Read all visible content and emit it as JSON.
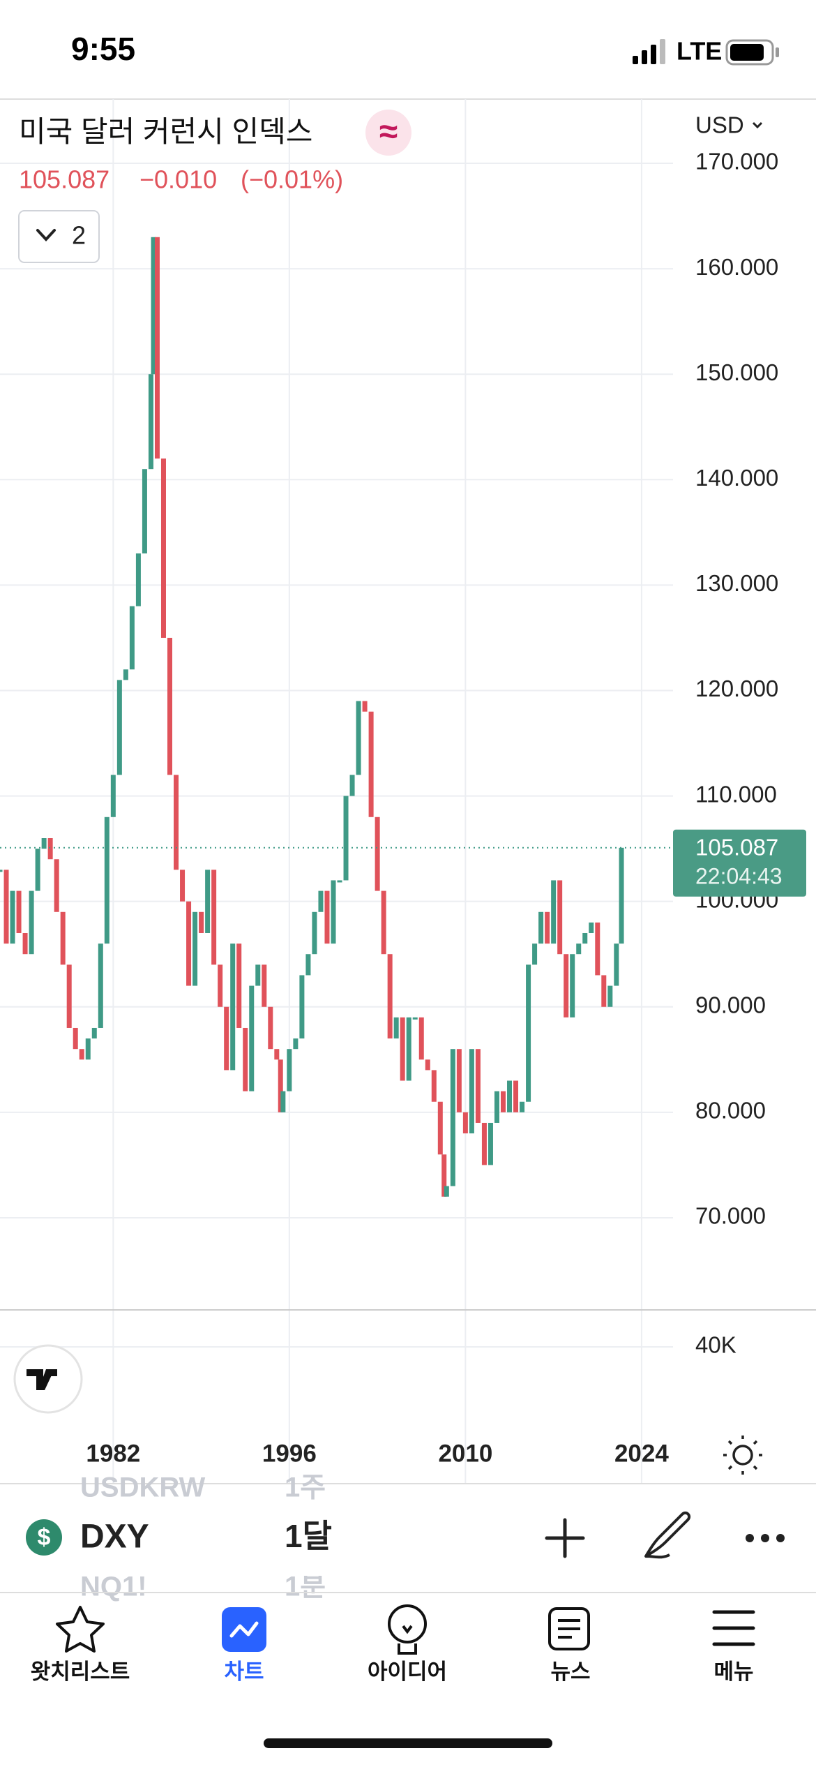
{
  "status_bar": {
    "time": "9:55",
    "network": "LTE"
  },
  "header": {
    "title": "미국 달러 커런시 인덱스",
    "price": "105.087",
    "change": "−0.010",
    "change_pct": "(−0.01%)",
    "indicator_count": "2",
    "currency": "USD"
  },
  "chart_data": {
    "type": "candlestick",
    "x": [
      1973.0,
      1973.5,
      1974.0,
      1974.5,
      1975.0,
      1975.5,
      1976.0,
      1976.5,
      1977.0,
      1977.5,
      1978.0,
      1978.5,
      1979.0,
      1979.5,
      1980.0,
      1980.5,
      1981.0,
      1981.5,
      1982.0,
      1982.5,
      1983.0,
      1983.5,
      1984.0,
      1984.5,
      1985.0,
      1985.2,
      1985.5,
      1986.0,
      1986.5,
      1987.0,
      1987.5,
      1988.0,
      1988.5,
      1989.0,
      1989.5,
      1990.0,
      1990.5,
      1991.0,
      1991.5,
      1992.0,
      1992.5,
      1993.0,
      1993.5,
      1994.0,
      1994.5,
      1995.0,
      1995.3,
      1995.5,
      1996.0,
      1996.5,
      1997.0,
      1997.5,
      1998.0,
      1998.5,
      1999.0,
      1999.5,
      2000.0,
      2000.5,
      2001.0,
      2001.5,
      2002.0,
      2002.5,
      2003.0,
      2003.5,
      2004.0,
      2004.5,
      2005.0,
      2005.5,
      2006.0,
      2006.5,
      2007.0,
      2007.5,
      2008.0,
      2008.3,
      2008.5,
      2009.0,
      2009.5,
      2010.0,
      2010.5,
      2011.0,
      2011.5,
      2012.0,
      2012.5,
      2013.0,
      2013.5,
      2014.0,
      2014.5,
      2015.0,
      2015.5,
      2016.0,
      2016.5,
      2017.0,
      2017.5,
      2018.0,
      2018.5,
      2019.0,
      2019.5,
      2020.0,
      2020.5,
      2021.0,
      2021.5,
      2022.0,
      2022.4
    ],
    "values": [
      103,
      96,
      101,
      97,
      95,
      101,
      105,
      106,
      104,
      99,
      94,
      88,
      86,
      85,
      87,
      88,
      96,
      108,
      112,
      121,
      122,
      128,
      133,
      141,
      150,
      163,
      142,
      125,
      112,
      103,
      100,
      92,
      99,
      97,
      103,
      94,
      90,
      84,
      96,
      88,
      82,
      92,
      94,
      90,
      86,
      85,
      80,
      82,
      86,
      87,
      93,
      95,
      99,
      101,
      96,
      102,
      102,
      110,
      112,
      119,
      118,
      108,
      101,
      95,
      87,
      89,
      83,
      89,
      89,
      85,
      84,
      81,
      76,
      72,
      73,
      86,
      80,
      78,
      86,
      79,
      75,
      79,
      82,
      80,
      83,
      80,
      81,
      94,
      96,
      99,
      96,
      102,
      95,
      89,
      95,
      96,
      97,
      98,
      93,
      90,
      92,
      96,
      105.087
    ],
    "up_color": "#3f9a86",
    "down_color": "#e0525a",
    "xlim": [
      1973,
      2026.5
    ],
    "ylim": [
      61.26,
      176.09
    ],
    "xticks": [
      1982,
      1996,
      2010,
      2024
    ],
    "yticks": [
      {
        "value": 70,
        "label": "70.000"
      },
      {
        "value": 80,
        "label": "80.000"
      },
      {
        "value": 90,
        "label": "90.000"
      },
      {
        "value": 100,
        "label": "100.000"
      },
      {
        "value": 110,
        "label": "110.000"
      },
      {
        "value": 120,
        "label": "120.000"
      },
      {
        "value": 130,
        "label": "130.000"
      },
      {
        "value": 140,
        "label": "140.000"
      },
      {
        "value": 150,
        "label": "150.000"
      },
      {
        "value": 160,
        "label": "160.000"
      },
      {
        "value": 170,
        "label": "170.000"
      }
    ],
    "grid": true,
    "last_price": 105.087,
    "countdown": "22:04:43",
    "volume_tick": {
      "value": 40000,
      "label": "40K"
    }
  },
  "symbol_bar": {
    "symbol": "DXY",
    "interval": "1달",
    "prev_symbol": "USDKRW",
    "prev_interval": "1주",
    "next_symbol": "NQ1!",
    "next_interval": "1분"
  },
  "tabs": [
    "왓치리스트",
    "차트",
    "아이디어",
    "뉴스",
    "메뉴"
  ]
}
